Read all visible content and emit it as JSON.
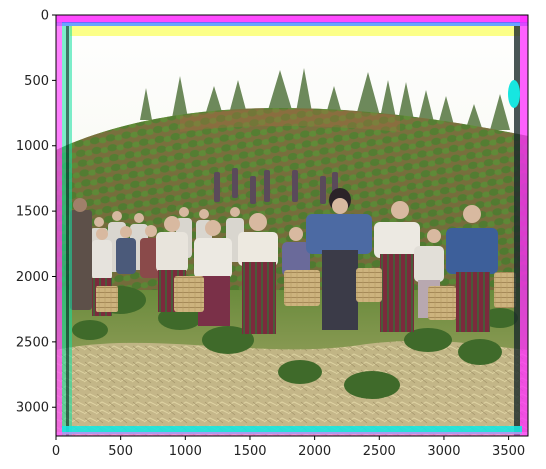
{
  "chart_data": {
    "type": "image",
    "title": "",
    "xlabel": "",
    "ylabel": "",
    "x_ticks": [
      "0",
      "500",
      "1000",
      "1500",
      "2000",
      "2500",
      "3000",
      "3500"
    ],
    "y_ticks": [
      "0",
      "500",
      "1000",
      "1500",
      "2000",
      "2500",
      "3000"
    ],
    "xlim": [
      0,
      3650
    ],
    "ylim": [
      3220,
      0
    ],
    "grid": false,
    "image_subject": "hand-colored photograph"
  },
  "colors": {
    "sky": "#f6f2e6",
    "hill_green": "#5d8a3a",
    "soil": "#a86a42",
    "grass_straw": "#c9b98a",
    "border_cyan": "#17e6e0",
    "border_magenta": "#ff2cff",
    "border_yellow": "#fbff6a"
  }
}
